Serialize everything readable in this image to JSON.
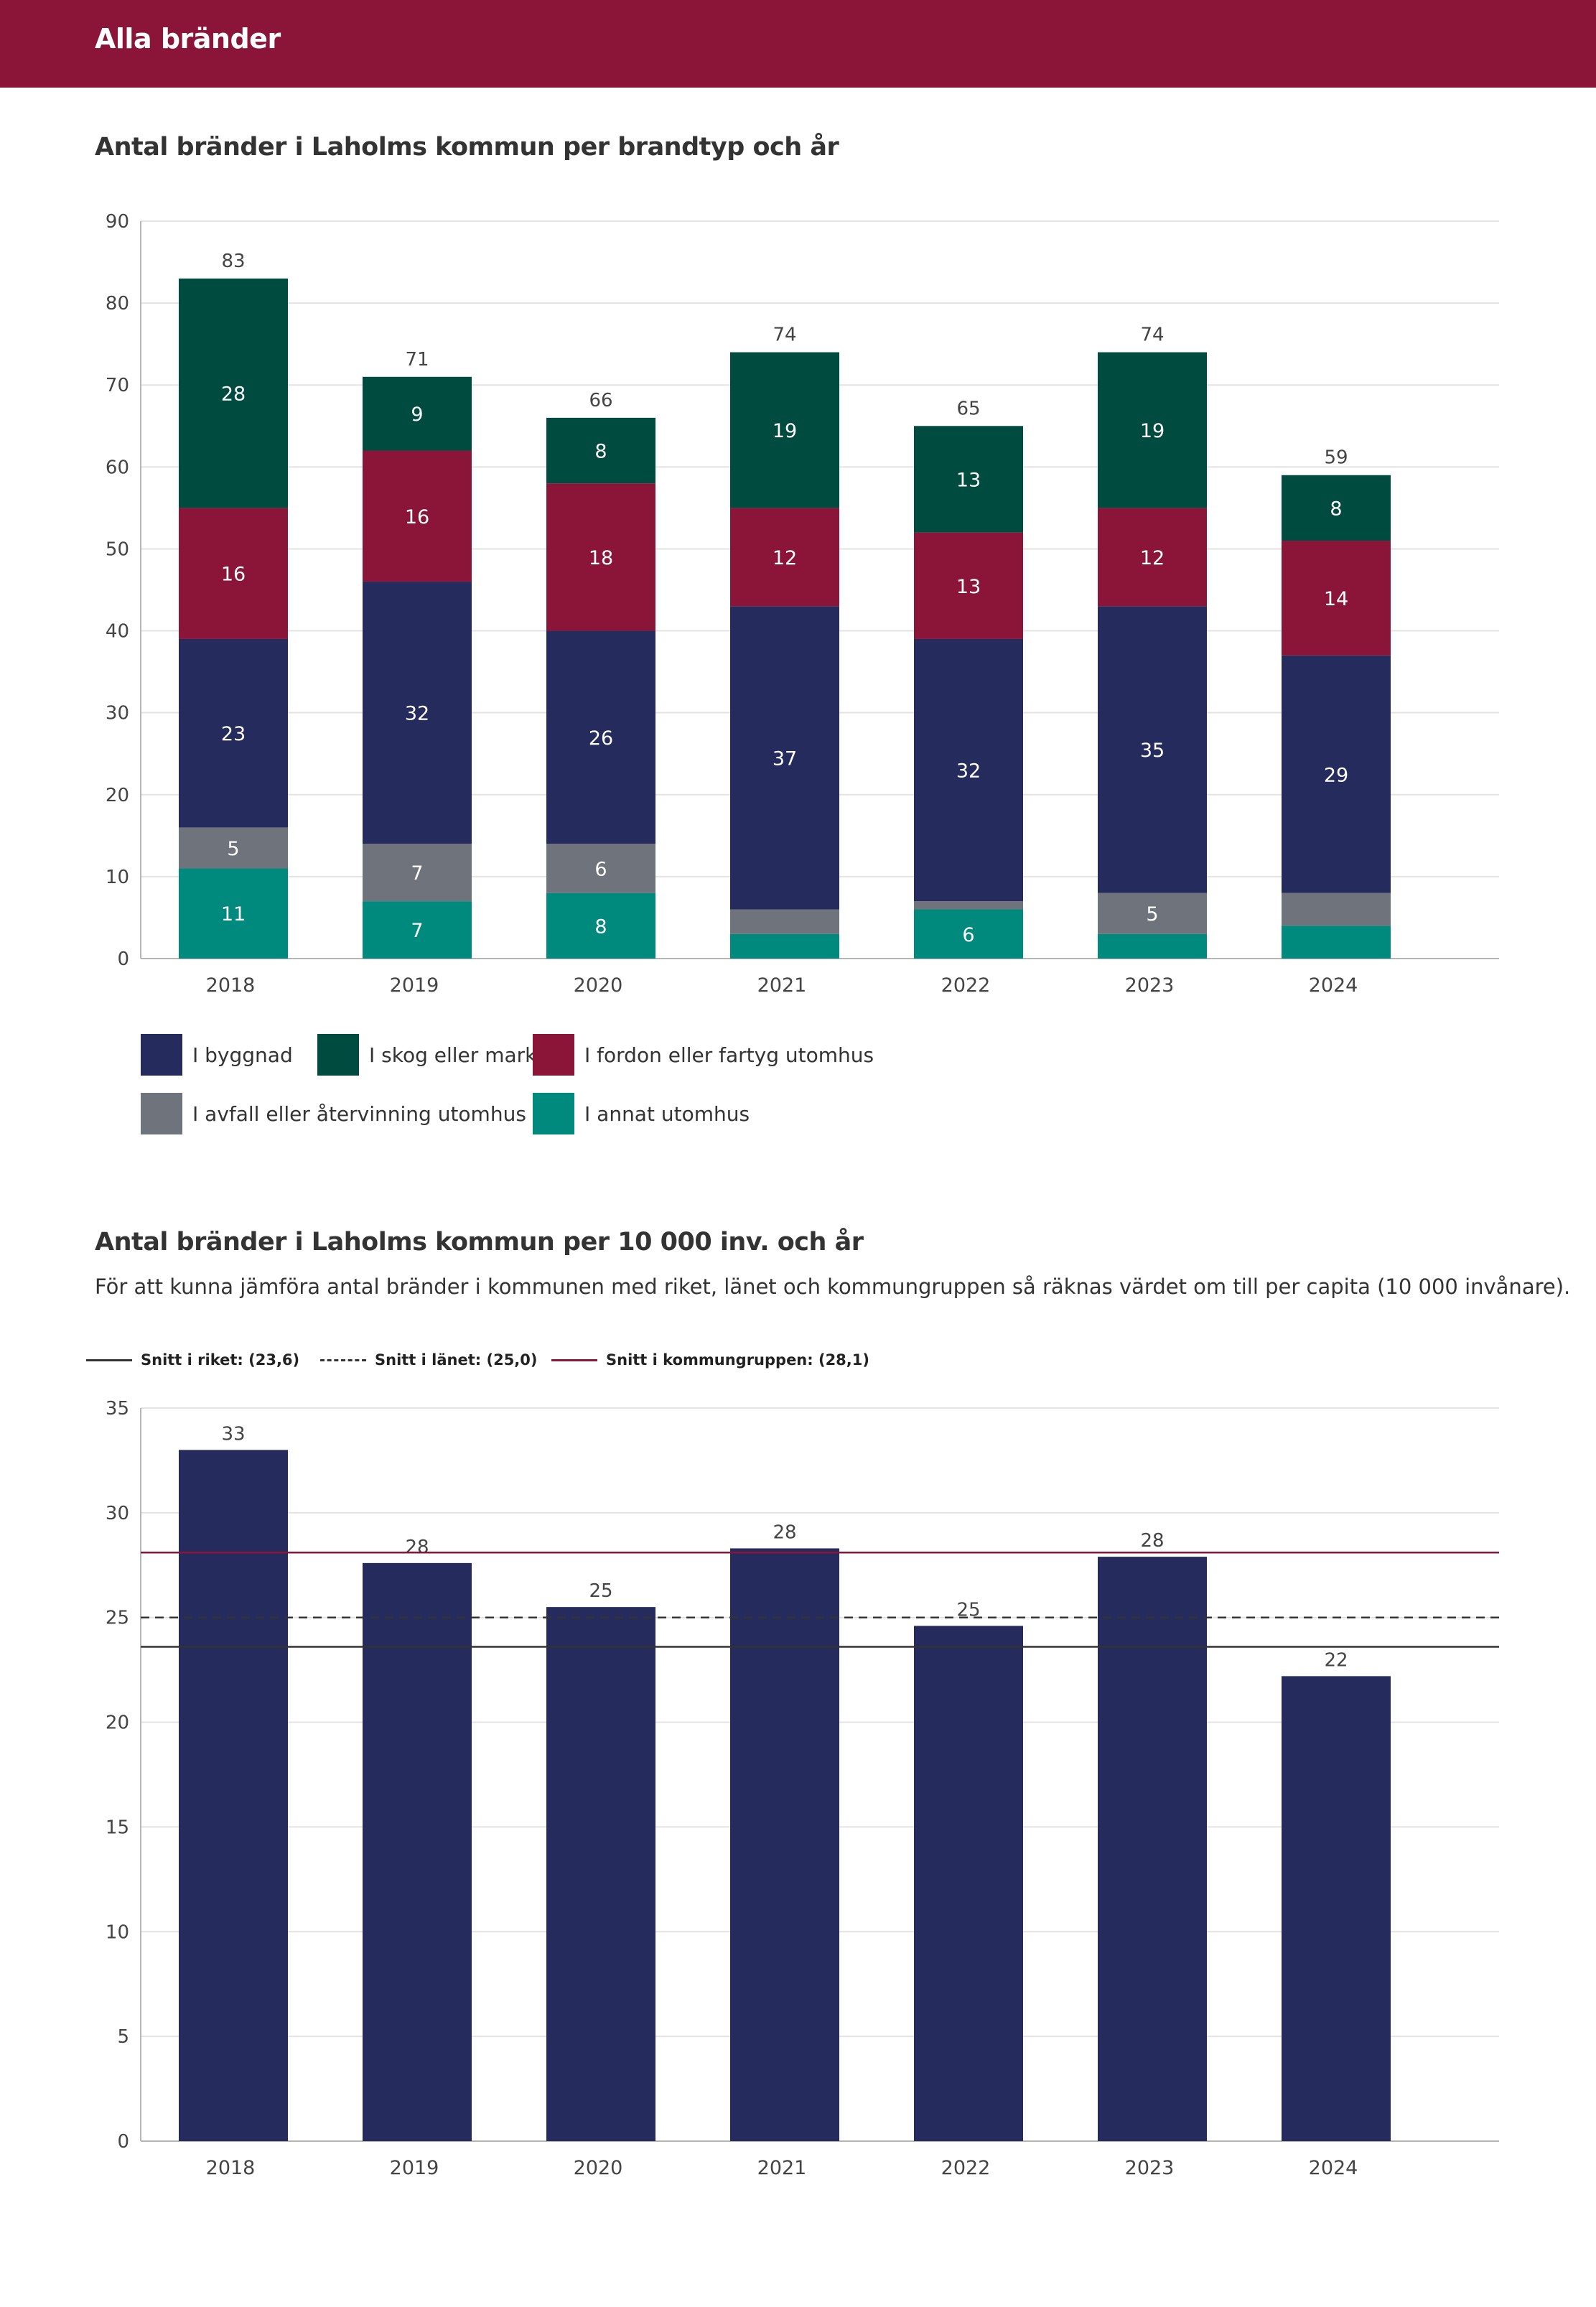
{
  "header": {
    "title": "Alla bränder"
  },
  "colors": {
    "header_bg": "#8b1538",
    "byggnad": "#252b5c",
    "skog": "#004b40",
    "fordon": "#8b1538",
    "avfall": "#6e737c",
    "annat": "#008a7e",
    "bar_single": "#252b5c",
    "ref_riket": "#333333",
    "ref_lanet": "#333333",
    "ref_kommungrupp": "#8b1538"
  },
  "chart1": {
    "title": "Antal bränder i Laholms kommun per brandtyp och år",
    "legend": [
      {
        "key": "byggnad",
        "label": "I byggnad"
      },
      {
        "key": "skog",
        "label": "I skog eller mark"
      },
      {
        "key": "fordon",
        "label": "I fordon eller fartyg utomhus"
      },
      {
        "key": "avfall",
        "label": "I avfall eller återvinning utomhus"
      },
      {
        "key": "annat",
        "label": "I annat utomhus"
      }
    ]
  },
  "chart2": {
    "title": "Antal bränder i Laholms kommun per 10 000 inv. och år",
    "subtitle": "För att kunna jämföra antal bränder i kommunen med riket, länet och kommungruppen så räknas värdet om till per capita (10 000 invånare).",
    "ref_legend": [
      {
        "key": "riket",
        "label": "Snitt i riket: (23,6)",
        "style": "solid"
      },
      {
        "key": "lanet",
        "label": "Snitt i länet: (25,0)",
        "style": "dashed"
      },
      {
        "key": "kommungrupp",
        "label": "Snitt i kommungruppen: (28,1)",
        "style": "solid-red"
      }
    ]
  },
  "chart_data": [
    {
      "type": "bar",
      "stacked": true,
      "title": "Antal bränder i Laholms kommun per brandtyp och år",
      "categories": [
        "2018",
        "2019",
        "2020",
        "2021",
        "2022",
        "2023",
        "2024"
      ],
      "series": [
        {
          "name": "I annat utomhus",
          "key": "annat",
          "values": [
            11,
            7,
            8,
            3,
            6,
            3,
            4
          ],
          "labels": [
            "11",
            "7",
            "8",
            "",
            "6",
            "",
            ""
          ]
        },
        {
          "name": "I avfall eller återvinning utomhus",
          "key": "avfall",
          "values": [
            5,
            7,
            6,
            3,
            1,
            5,
            4
          ],
          "labels": [
            "5",
            "7",
            "6",
            "",
            "",
            "5",
            ""
          ]
        },
        {
          "name": "I byggnad",
          "key": "byggnad",
          "values": [
            23,
            32,
            26,
            37,
            32,
            35,
            29
          ],
          "labels": [
            "23",
            "32",
            "26",
            "37",
            "32",
            "35",
            "29"
          ]
        },
        {
          "name": "I fordon eller fartyg utomhus",
          "key": "fordon",
          "values": [
            16,
            16,
            18,
            12,
            13,
            12,
            14
          ],
          "labels": [
            "16",
            "16",
            "18",
            "12",
            "13",
            "12",
            "14"
          ]
        },
        {
          "name": "I skog eller mark",
          "key": "skog",
          "values": [
            28,
            9,
            8,
            19,
            13,
            19,
            8
          ],
          "labels": [
            "28",
            "9",
            "8",
            "19",
            "13",
            "19",
            "8"
          ]
        }
      ],
      "totals": [
        83,
        71,
        66,
        74,
        65,
        74,
        59
      ],
      "total_labels": [
        "83",
        "71",
        "66",
        "74",
        "65",
        "74",
        "59"
      ],
      "ylim": [
        0,
        90
      ],
      "yticks": [
        0,
        10,
        20,
        30,
        40,
        50,
        60,
        70,
        80,
        90
      ],
      "ytick_labels": [
        "0",
        "10",
        "20",
        "30",
        "40",
        "50",
        "60",
        "70",
        "80",
        "90"
      ],
      "grid": true,
      "legend_position": "bottom"
    },
    {
      "type": "bar",
      "title": "Antal bränder i Laholms kommun per 10 000 inv. och år",
      "categories": [
        "2018",
        "2019",
        "2020",
        "2021",
        "2022",
        "2023",
        "2024"
      ],
      "values": [
        33.0,
        27.6,
        25.5,
        28.3,
        24.6,
        27.9,
        22.2
      ],
      "value_labels": [
        "33",
        "28",
        "25",
        "28",
        "25",
        "28",
        "22"
      ],
      "reference_lines": [
        {
          "name": "Snitt i riket",
          "value": 23.6,
          "style": "solid"
        },
        {
          "name": "Snitt i länet",
          "value": 25.0,
          "style": "dashed"
        },
        {
          "name": "Snitt i kommungruppen",
          "value": 28.1,
          "style": "solid-red"
        }
      ],
      "ylim": [
        0,
        35
      ],
      "yticks": [
        0,
        5,
        10,
        15,
        20,
        25,
        30,
        35
      ],
      "ytick_labels": [
        "0",
        "5",
        "10",
        "15",
        "20",
        "25",
        "30",
        "35"
      ],
      "grid": true,
      "legend_position": "top-left"
    }
  ]
}
